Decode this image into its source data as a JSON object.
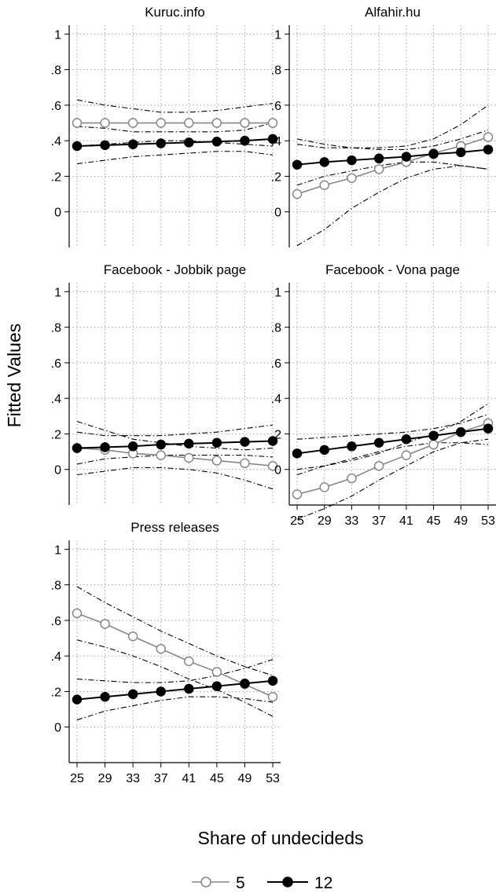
{
  "chart_data": {
    "type": "line",
    "ylabel": "Fitted Values",
    "xlabel": "Share of undecideds",
    "x": [
      25,
      29,
      33,
      37,
      41,
      45,
      49,
      53
    ],
    "x_ticks": [
      "25",
      "29",
      "33",
      "37",
      "41",
      "45",
      "49",
      "53"
    ],
    "y_ticks": [
      "0",
      ".2",
      ".4",
      ".6",
      ".8",
      "1"
    ],
    "y_tick_values": [
      0,
      0.2,
      0.4,
      0.6,
      0.8,
      1
    ],
    "ylim": [
      -0.2,
      1.05
    ],
    "grid": true,
    "legend": {
      "placement": "bottom-center",
      "entries": [
        {
          "label": "5",
          "marker": "hollow-circle",
          "color": "#888888"
        },
        {
          "label": "12",
          "marker": "filled-circle",
          "color": "#000000"
        }
      ]
    },
    "panels": [
      {
        "title": "Kuruc.info",
        "series": [
          {
            "name": "5",
            "values": [
              0.5,
              0.5,
              0.5,
              0.5,
              0.5,
              0.5,
              0.5,
              0.5
            ],
            "ci_low": [
              0.37,
              0.38,
              0.39,
              0.4,
              0.4,
              0.39,
              0.38,
              0.37
            ],
            "ci_high": [
              0.63,
              0.6,
              0.58,
              0.56,
              0.56,
              0.57,
              0.59,
              0.61
            ]
          },
          {
            "name": "12",
            "values": [
              0.37,
              0.375,
              0.38,
              0.385,
              0.39,
              0.395,
              0.4,
              0.41
            ],
            "ci_low": [
              0.27,
              0.29,
              0.31,
              0.32,
              0.33,
              0.34,
              0.34,
              0.32
            ],
            "ci_high": [
              0.48,
              0.47,
              0.45,
              0.45,
              0.45,
              0.45,
              0.46,
              0.5
            ]
          }
        ]
      },
      {
        "title": "Alfahir.hu",
        "series": [
          {
            "name": "5",
            "values": [
              0.1,
              0.15,
              0.19,
              0.24,
              0.28,
              0.33,
              0.37,
              0.42
            ],
            "ci_low": [
              -0.19,
              -0.1,
              0.02,
              0.11,
              0.19,
              0.24,
              0.26,
              0.24
            ],
            "ci_high": [
              0.38,
              0.36,
              0.36,
              0.36,
              0.37,
              0.41,
              0.49,
              0.6
            ]
          },
          {
            "name": "12",
            "values": [
              0.265,
              0.28,
              0.29,
              0.3,
              0.31,
              0.325,
              0.335,
              0.35
            ],
            "ci_low": [
              0.15,
              0.2,
              0.23,
              0.26,
              0.28,
              0.28,
              0.26,
              0.24
            ],
            "ci_high": [
              0.41,
              0.38,
              0.36,
              0.35,
              0.35,
              0.37,
              0.41,
              0.46
            ]
          }
        ]
      },
      {
        "title": "Facebook - Jobbik page",
        "series": [
          {
            "name": "5",
            "values": [
              0.12,
              0.11,
              0.09,
              0.08,
              0.065,
              0.05,
              0.035,
              0.02
            ],
            "ci_low": [
              -0.03,
              -0.01,
              0.01,
              0.01,
              0.0,
              -0.02,
              -0.06,
              -0.11
            ],
            "ci_high": [
              0.27,
              0.22,
              0.17,
              0.15,
              0.13,
              0.12,
              0.11,
              0.12
            ]
          },
          {
            "name": "12",
            "values": [
              0.12,
              0.125,
              0.13,
              0.14,
              0.145,
              0.15,
              0.155,
              0.16
            ],
            "ci_low": [
              0.03,
              0.06,
              0.07,
              0.08,
              0.08,
              0.08,
              0.08,
              0.07
            ],
            "ci_high": [
              0.21,
              0.19,
              0.19,
              0.19,
              0.2,
              0.21,
              0.23,
              0.25
            ]
          }
        ]
      },
      {
        "title": "Facebook - Vona page",
        "series": [
          {
            "name": "5",
            "values": [
              -0.14,
              -0.1,
              -0.05,
              0.02,
              0.08,
              0.14,
              0.21,
              0.26
            ],
            "ci_low": [
              -0.28,
              -0.22,
              -0.15,
              -0.06,
              0.02,
              0.1,
              0.15,
              0.17
            ],
            "ci_high": [
              0.0,
              0.02,
              0.05,
              0.09,
              0.15,
              0.2,
              0.27,
              0.37
            ]
          },
          {
            "name": "12",
            "values": [
              0.09,
              0.11,
              0.13,
              0.15,
              0.17,
              0.19,
              0.21,
              0.23
            ],
            "ci_low": [
              -0.03,
              0.02,
              0.06,
              0.1,
              0.13,
              0.15,
              0.15,
              0.14
            ],
            "ci_high": [
              0.17,
              0.18,
              0.19,
              0.2,
              0.21,
              0.23,
              0.26,
              0.31
            ]
          }
        ]
      },
      {
        "title": "Press releases",
        "series": [
          {
            "name": "5",
            "values": [
              0.64,
              0.58,
              0.51,
              0.44,
              0.37,
              0.31,
              0.24,
              0.17
            ],
            "ci_low": [
              0.49,
              0.45,
              0.4,
              0.34,
              0.27,
              0.21,
              0.14,
              0.06
            ],
            "ci_high": [
              0.79,
              0.7,
              0.62,
              0.54,
              0.47,
              0.4,
              0.34,
              0.29
            ]
          },
          {
            "name": "12",
            "values": [
              0.155,
              0.17,
              0.185,
              0.2,
              0.215,
              0.23,
              0.245,
              0.26
            ],
            "ci_low": [
              0.04,
              0.09,
              0.12,
              0.15,
              0.17,
              0.17,
              0.16,
              0.14
            ],
            "ci_high": [
              0.27,
              0.26,
              0.25,
              0.25,
              0.26,
              0.29,
              0.33,
              0.38
            ]
          }
        ]
      }
    ]
  }
}
